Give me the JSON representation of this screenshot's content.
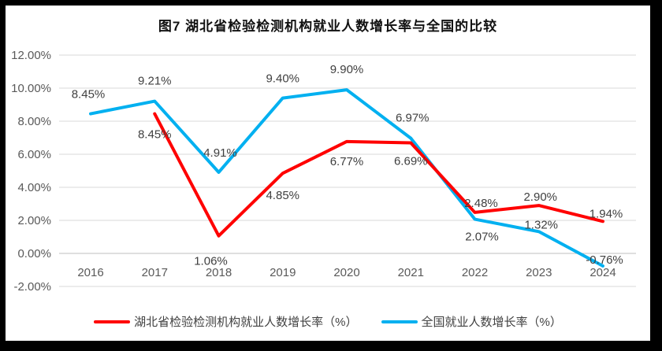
{
  "frame": {
    "border_color": "#000000",
    "card_background": "#FFFFFF"
  },
  "title": "图7 湖北省检验检测机构就业人数增长率与全国的比较",
  "legend": [
    {
      "label": "湖北省检验检测机构就业人数增长率（%）",
      "color": "#FF0000"
    },
    {
      "label": "全国就业人数增长率（%）",
      "color": "#00B0F0"
    }
  ],
  "chart_data": {
    "type": "line",
    "title": "图7 湖北省检验检测机构就业人数增长率与全国的比较",
    "categories": [
      "2016",
      "2017",
      "2018",
      "2019",
      "2020",
      "2021",
      "2022",
      "2023",
      "2024"
    ],
    "series": [
      {
        "name": "湖北省检验检测机构就业人数增长率（%）",
        "color": "#FF0000",
        "values": [
          null,
          8.45,
          1.06,
          4.85,
          6.77,
          6.69,
          2.48,
          2.9,
          1.94
        ],
        "labels": [
          null,
          "8.45%",
          "1.06%",
          "4.85%",
          "6.77%",
          "6.69%",
          "2.48%",
          "2.90%",
          "1.94%"
        ],
        "label_offsets": [
          null,
          [
            0,
            31
          ],
          [
            -10,
            37
          ],
          [
            0,
            33
          ],
          [
            0,
            30
          ],
          [
            0,
            28
          ],
          [
            8,
            -7
          ],
          [
            2,
            -6
          ],
          [
            4,
            -5
          ]
        ]
      },
      {
        "name": "全国就业人数增长率（%）",
        "color": "#00B0F0",
        "values": [
          8.45,
          9.21,
          4.91,
          9.4,
          9.9,
          6.97,
          2.07,
          1.32,
          -0.76
        ],
        "labels": [
          "8.45%",
          "9.21%",
          "4.91%",
          "9.40%",
          "9.90%",
          "6.97%",
          "2.07%",
          "1.32%",
          "-0.76%"
        ],
        "label_offsets": [
          [
            -3,
            -20
          ],
          [
            0,
            -21
          ],
          [
            2,
            -20
          ],
          [
            0,
            -20
          ],
          [
            0,
            -21
          ],
          [
            2,
            -21
          ],
          [
            9,
            27
          ],
          [
            3,
            -4
          ],
          [
            2,
            -3
          ]
        ]
      }
    ],
    "y_axis": {
      "min": -2,
      "max": 12,
      "step": 2,
      "format": "percent",
      "tick_labels": [
        "12.00%",
        "10.00%",
        "8.00%",
        "6.00%",
        "4.00%",
        "2.00%",
        "0.00%",
        "-2.00%"
      ]
    },
    "x_axis_labels": [
      "2016",
      "2017",
      "2018",
      "2019",
      "2020",
      "2021",
      "2022",
      "2023",
      "2024"
    ],
    "grid": true,
    "gridline_color": "#D9D9D9",
    "axis_line_color": "#BFBFBF",
    "legend_position": "bottom"
  }
}
